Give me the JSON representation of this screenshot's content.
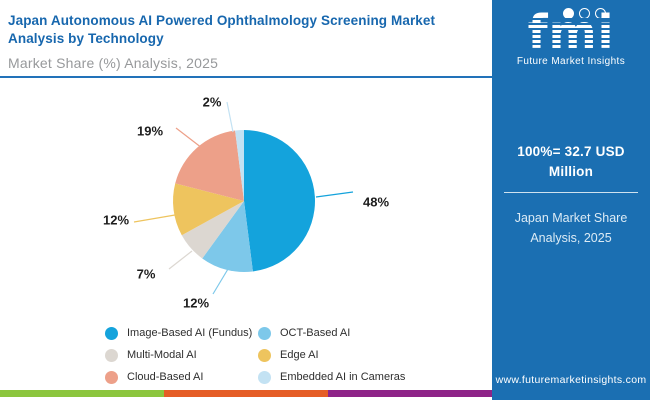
{
  "header": {
    "title": "Japan Autonomous AI Powered Ophthalmology Screening Market Analysis by Technology",
    "subtitle": "Market Share (%) Analysis, 2025"
  },
  "sidebar": {
    "logo_text": "fmi",
    "logo_tagline": "Future Market Insights",
    "stat_value": "100%= 32.7 USD Million",
    "stat_caption": "Japan Market Share Analysis, 2025",
    "website": "www.futuremarketinsights.com",
    "bg_color": "#1B6FB2"
  },
  "chart_data": {
    "type": "pie",
    "title": "Japan Autonomous AI Powered Ophthalmology Screening Market Analysis by Technology",
    "subtitle": "Market Share (%) Analysis, 2025",
    "unit": "%",
    "total_note": "100%= 32.7 USD Million",
    "start_angle_deg": 0,
    "direction": "clockwise",
    "legend_position": "bottom",
    "slices": [
      {
        "label": "Image-Based AI (Fundus)",
        "value": 48,
        "display": "48%",
        "color": "#14A3DC"
      },
      {
        "label": "OCT-Based AI",
        "value": 12,
        "display": "12%",
        "color": "#7DC8EA"
      },
      {
        "label": "Multi-Modal AI",
        "value": 7,
        "display": "7%",
        "color": "#DCD7D1"
      },
      {
        "label": "Edge AI",
        "value": 12,
        "display": "12%",
        "color": "#EEC45E"
      },
      {
        "label": "Cloud-Based AI",
        "value": 19,
        "display": "19%",
        "color": "#EDA089"
      },
      {
        "label": "Embedded AI in Cameras",
        "value": 2,
        "display": "2%",
        "color": "#C3E2F3"
      }
    ]
  },
  "footer": {
    "stripe_colors": [
      "#8CC63E",
      "#E55D26",
      "#8E2488"
    ]
  }
}
